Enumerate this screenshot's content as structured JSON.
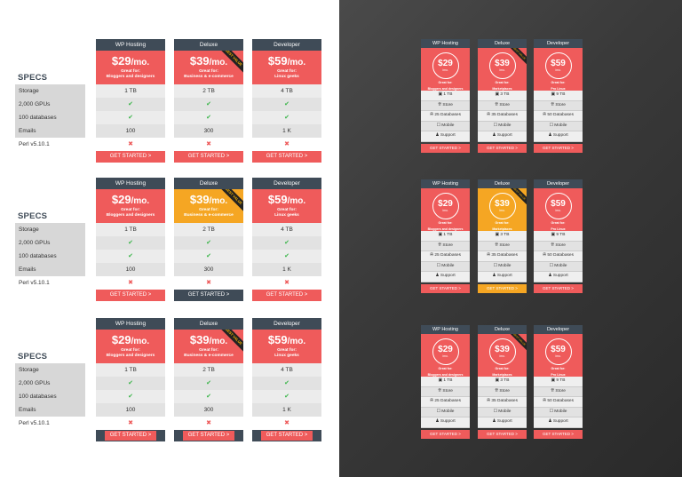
{
  "colors": {
    "accent": "#ef5b5b",
    "highlight": "#f5a623",
    "header": "#3f4b57"
  },
  "left": {
    "specs_label": "SPECS",
    "spec_labels": [
      "Storage",
      "2,000 GPUs",
      "100 databases",
      "Emails",
      "Perl v5.10.1"
    ],
    "ribbon": "BEST VALUE",
    "plans": [
      {
        "name": "WP Hosting",
        "price": "$29",
        "per": "/mo.",
        "great_for": "Great for:",
        "audience": "Bloggers and designers",
        "values": [
          "1 TB",
          "✔",
          "✔",
          "100",
          "✖"
        ],
        "cta": "GET STARTED >"
      },
      {
        "name": "Deluxe",
        "price": "$39",
        "per": "/mo.",
        "great_for": "Great for:",
        "audience": "Business & e-commerce",
        "values": [
          "2 TB",
          "✔",
          "✔",
          "300",
          "✖"
        ],
        "cta": "GET STARTED >"
      },
      {
        "name": "Developer",
        "price": "$59",
        "per": "/mo.",
        "great_for": "Great for:",
        "audience": "Linux geeks",
        "values": [
          "4 TB",
          "✔",
          "✔",
          "1 K",
          "✖"
        ],
        "cta": "GET STARTED >"
      }
    ]
  },
  "right": {
    "ribbon": "BEST VALUE",
    "per": "/mo.",
    "great_for": "Great for:",
    "plans": [
      {
        "name": "WP Hosting",
        "price": "$29",
        "audience": "Bloggers and designers",
        "features": [
          "▣ 1 TB",
          "⇈ Store",
          "✇ 25 Databases",
          "☐ Mobile",
          "♟ Support"
        ],
        "cta": "GET STARTED >"
      },
      {
        "name": "Deluxe",
        "price": "$39",
        "audience": "Marketplaces",
        "features": [
          "▣ 3 TB",
          "⇈ Store",
          "✇ 35 Databases",
          "☐ Mobile",
          "♟ Support"
        ],
        "cta": "GET STARTED >"
      },
      {
        "name": "Developer",
        "price": "$59",
        "audience": "Pro Linux",
        "features": [
          "▣ 9 TB",
          "⇈ Store",
          "✇ 50 Databases",
          "☐ Mobile",
          "♟ Support"
        ],
        "cta": "GET STARTED >"
      }
    ]
  }
}
